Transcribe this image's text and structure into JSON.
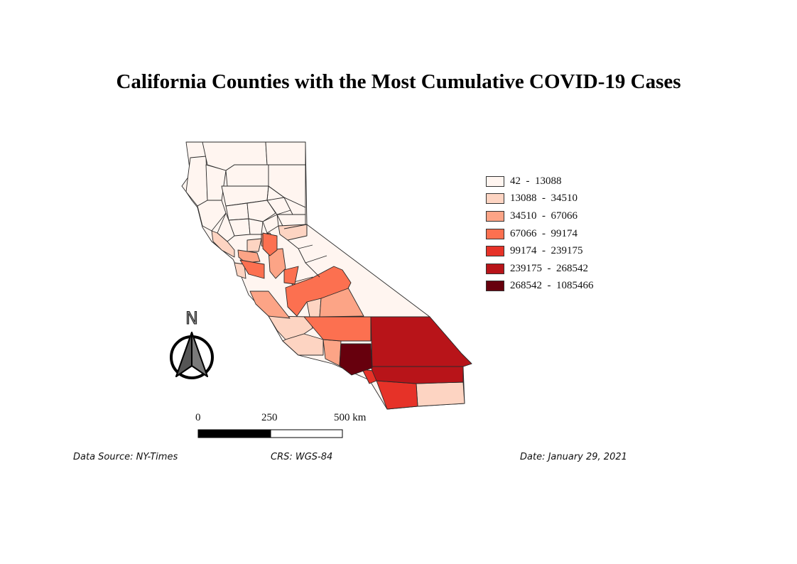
{
  "title": "California Counties with the Most Cumulative COVID-19 Cases",
  "legend": {
    "items": [
      {
        "label": "42  -  13088",
        "color": "#fff5f0"
      },
      {
        "label": "13088  -  34510",
        "color": "#fdd4c2"
      },
      {
        "label": "34510  -  67066",
        "color": "#fca486"
      },
      {
        "label": "67066  -  99174",
        "color": "#fc7050"
      },
      {
        "label": "99174  -  239175",
        "color": "#e63228"
      },
      {
        "label": "239175  -  268542",
        "color": "#b81419"
      },
      {
        "label": "268542  -  1085466",
        "color": "#67000d"
      }
    ]
  },
  "north_arrow": {
    "letter": "N",
    "icon": "north-arrow-icon"
  },
  "scale_bar": {
    "labels": [
      "0",
      "250",
      "500 km"
    ]
  },
  "footer": {
    "source": "Data Source: NY-Times",
    "crs": "CRS: WGS-84",
    "date": "Date: January 29, 2021"
  }
}
